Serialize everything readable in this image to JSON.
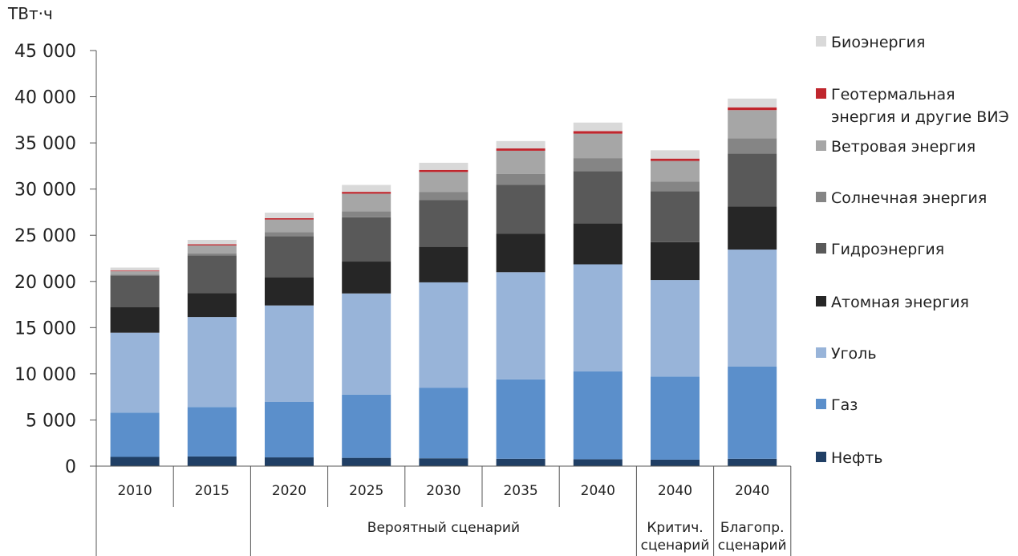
{
  "chart_data": {
    "type": "bar",
    "stacked": true,
    "unit_label": "ТВт·ч",
    "ylim": [
      0,
      45000
    ],
    "y_ticks": [
      "0",
      "5 000",
      "10 000",
      "15 000",
      "20 000",
      "25 000",
      "30 000",
      "35 000",
      "40 000",
      "45 000"
    ],
    "categories": [
      "2010",
      "2015",
      "2020",
      "2025",
      "2030",
      "2035",
      "2040",
      "2040",
      "2040"
    ],
    "category_groups": [
      {
        "label": "",
        "span": 2
      },
      {
        "label": "Вероятный сценарий",
        "span": 5
      },
      {
        "label": "Критич. сценарий",
        "span": 1
      },
      {
        "label": "Благопр. сценарий",
        "span": 1
      }
    ],
    "series": [
      {
        "name": "Нефть",
        "color": "#203f65",
        "values": [
          1000,
          1050,
          950,
          900,
          850,
          800,
          750,
          700,
          800
        ]
      },
      {
        "name": "Газ",
        "color": "#5b8fcb",
        "values": [
          4800,
          5350,
          6000,
          6850,
          7650,
          8600,
          9500,
          9000,
          10000
        ]
      },
      {
        "name": "Уголь",
        "color": "#98b4d9",
        "values": [
          8650,
          9750,
          10450,
          10950,
          11400,
          11600,
          11600,
          10450,
          12650
        ]
      },
      {
        "name": "Атомная энергия",
        "color": "#262626",
        "values": [
          2750,
          2600,
          3050,
          3450,
          3850,
          4150,
          4450,
          4100,
          4650
        ]
      },
      {
        "name": "Гидроэнергия",
        "color": "#595959",
        "values": [
          3450,
          4050,
          4450,
          4800,
          5050,
          5300,
          5650,
          5500,
          5750
        ]
      },
      {
        "name": "Солнечная энергия",
        "color": "#858585",
        "values": [
          100,
          250,
          450,
          650,
          900,
          1200,
          1400,
          1050,
          1650
        ]
      },
      {
        "name": "Ветровая энергия",
        "color": "#a6a6a6",
        "values": [
          350,
          850,
          1350,
          1900,
          2150,
          2500,
          2650,
          2250,
          3050
        ]
      },
      {
        "name": "Геотермальная энергия и другие ВИЭ",
        "color": "#c0262d",
        "values": [
          80,
          120,
          150,
          200,
          220,
          250,
          280,
          250,
          300
        ]
      },
      {
        "name": "Биоэнергия",
        "color": "#d9d9d9",
        "values": [
          320,
          480,
          600,
          750,
          780,
          800,
          920,
          900,
          950
        ]
      }
    ],
    "legend": {
      "position": "right",
      "order": [
        "Биоэнергия",
        "Геотермальная энергия и другие ВИЭ",
        "Ветровая энергия",
        "Солнечная энергия",
        "Гидроэнергия",
        "Атомная энергия",
        "Уголь",
        "Газ",
        "Нефть"
      ]
    },
    "grid": false
  }
}
